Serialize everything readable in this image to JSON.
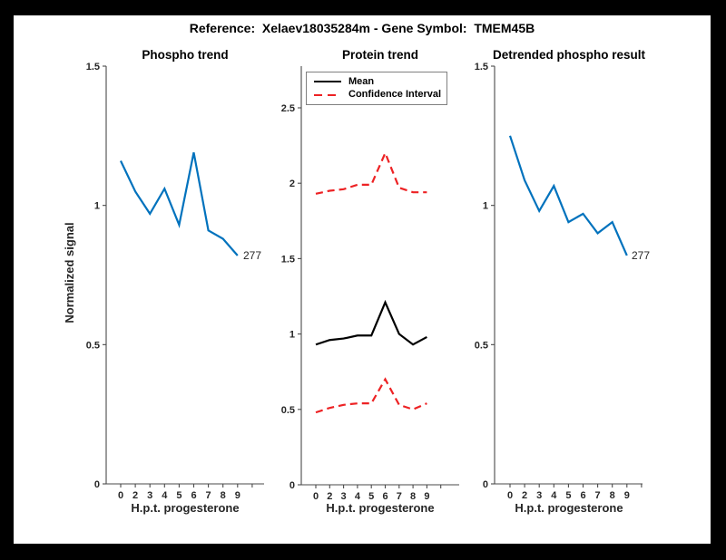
{
  "figure": {
    "title": "Reference:  Xelaev18035284m - Gene Symbol:  TMEM45B",
    "background_color": "#ffffff",
    "frame_color": "#000000"
  },
  "colors": {
    "line_blue": "#0072BD",
    "ci_red": "#ED2224",
    "mean_black": "#000000",
    "axis_gray": "#4a4a4a",
    "text_dark": "#262626"
  },
  "chart_data": [
    {
      "type": "line",
      "title": "Phospho trend",
      "xlabel": "H.p.t. progesterone",
      "ylabel": "Normalized signal",
      "categories": [
        "0",
        "2",
        "3",
        "4",
        "5",
        "6",
        "7",
        "8",
        "9"
      ],
      "yticks": [
        0,
        0.5,
        1,
        1.5
      ],
      "ylim": [
        0,
        1.5
      ],
      "grid": false,
      "series": [
        {
          "name": "phospho signal",
          "color": "#0072BD",
          "style": "solid",
          "values": [
            1.16,
            1.05,
            0.97,
            1.06,
            0.93,
            1.19,
            0.91,
            0.88,
            0.82
          ]
        }
      ],
      "end_label": "277"
    },
    {
      "type": "line",
      "title": "Protein trend",
      "xlabel": "H.p.t. progesterone",
      "ylabel": "",
      "categories": [
        "0",
        "2",
        "3",
        "4",
        "5",
        "6",
        "7",
        "8",
        "9"
      ],
      "yticks": [
        0,
        0.5,
        1,
        1.5,
        2,
        2.5
      ],
      "ylim": [
        0,
        2.78
      ],
      "grid": false,
      "series": [
        {
          "name": "Mean",
          "color": "#000000",
          "style": "solid",
          "values": [
            0.93,
            0.96,
            0.97,
            0.99,
            0.99,
            1.21,
            1.0,
            0.93,
            0.98
          ]
        },
        {
          "name": "Confidence Interval upper",
          "color": "#ED2224",
          "style": "dashed",
          "values": [
            1.93,
            1.95,
            1.96,
            1.99,
            1.99,
            2.2,
            1.97,
            1.94,
            1.94
          ]
        },
        {
          "name": "Confidence Interval lower",
          "color": "#ED2224",
          "style": "dashed",
          "values": [
            0.48,
            0.51,
            0.53,
            0.54,
            0.54,
            0.7,
            0.53,
            0.5,
            0.54
          ]
        }
      ],
      "legend": {
        "position": "top-left",
        "entries": [
          {
            "label": "Mean",
            "color": "#000000",
            "style": "solid"
          },
          {
            "label": "Confidence Interval",
            "color": "#ED2224",
            "style": "dashed"
          }
        ]
      }
    },
    {
      "type": "line",
      "title": "Detrended phospho result",
      "xlabel": "H.p.t. progesterone",
      "ylabel": "",
      "categories": [
        "0",
        "2",
        "3",
        "4",
        "5",
        "6",
        "7",
        "8",
        "9"
      ],
      "yticks": [
        0,
        0.5,
        1,
        1.5
      ],
      "ylim": [
        0,
        1.5
      ],
      "grid": false,
      "series": [
        {
          "name": "detrended phospho signal",
          "color": "#0072BD",
          "style": "solid",
          "values": [
            1.25,
            1.09,
            0.98,
            1.07,
            0.94,
            0.97,
            0.9,
            0.94,
            0.82
          ]
        }
      ],
      "end_label": "277"
    }
  ]
}
